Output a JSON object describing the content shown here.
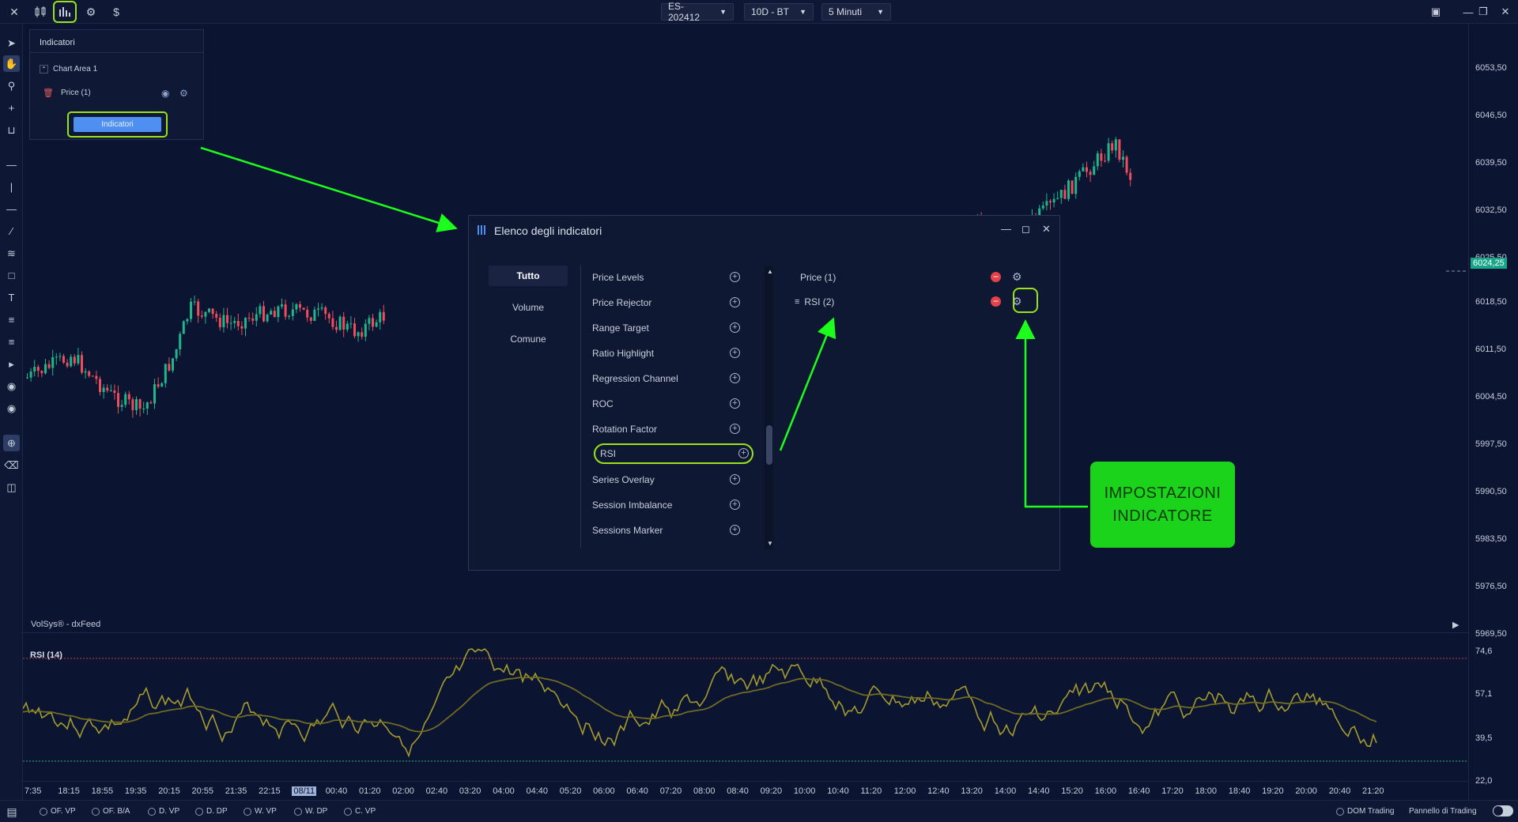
{
  "topbar": {
    "symbol": "ES-202412",
    "period": "10D - BT",
    "timeframe": "5 Minuti"
  },
  "indicator_panel": {
    "title": "Indicatori",
    "chart_area": "Chart Area 1",
    "price_item": "Price (1)",
    "button_label": "Indicatori"
  },
  "dialog": {
    "title": "Elenco degli indicatori",
    "categories": [
      "Tutto",
      "Volume",
      "Comune"
    ],
    "indicators": [
      "Price Levels",
      "Price Rejector",
      "Range Target",
      "Ratio Highlight",
      "Regression Channel",
      "ROC",
      "Rotation Factor",
      "RSI",
      "Series Overlay",
      "Session Imbalance",
      "Sessions Marker"
    ],
    "active": [
      "Price (1)",
      "RSI (2)"
    ]
  },
  "callout": {
    "line1": "IMPOSTAZIONI",
    "line2": "INDICATORE"
  },
  "price_axis": [
    "6053,50",
    "6046,50",
    "6039,50",
    "6032,50",
    "6025,50",
    "6018,50",
    "6011,50",
    "6004,50",
    "5997,50",
    "5990,50",
    "5983,50",
    "5976,50",
    "5969,50"
  ],
  "current_price": "6024,25",
  "feed_label": "VolSys® - dxFeed",
  "rsi": {
    "title": "RSI (14)",
    "axis": [
      "74,6",
      "57,1",
      "39,5",
      "22,0"
    ]
  },
  "time_axis": [
    "7:35",
    "18:15",
    "18:55",
    "19:35",
    "20:15",
    "20:55",
    "21:35",
    "22:15",
    "08/11",
    "00:40",
    "01:20",
    "02:00",
    "02:40",
    "03:20",
    "04:00",
    "04:40",
    "05:20",
    "06:00",
    "06:40",
    "07:20",
    "08:00",
    "08:40",
    "09:20",
    "10:00",
    "10:40",
    "11:20",
    "12:00",
    "12:40",
    "13:20",
    "14:00",
    "14:40",
    "15:20",
    "16:00",
    "16:40",
    "17:20",
    "18:00",
    "18:40",
    "19:20",
    "20:00",
    "20:40",
    "21:20"
  ],
  "bottombar": {
    "chips": [
      "OF. VP",
      "OF. B/A",
      "D. VP",
      "D. DP",
      "W. VP",
      "W. DP",
      "C. VP"
    ],
    "dom_trading": "DOM Trading",
    "trading_panel": "Pannello di Trading"
  },
  "colors": {
    "background": "#0b1430",
    "bull_candle": "#1fb68e",
    "bear_candle": "#ef4d5d",
    "highlight": "#9be11b",
    "callout": "#1cd31c",
    "accent": "#4f8ff2"
  }
}
